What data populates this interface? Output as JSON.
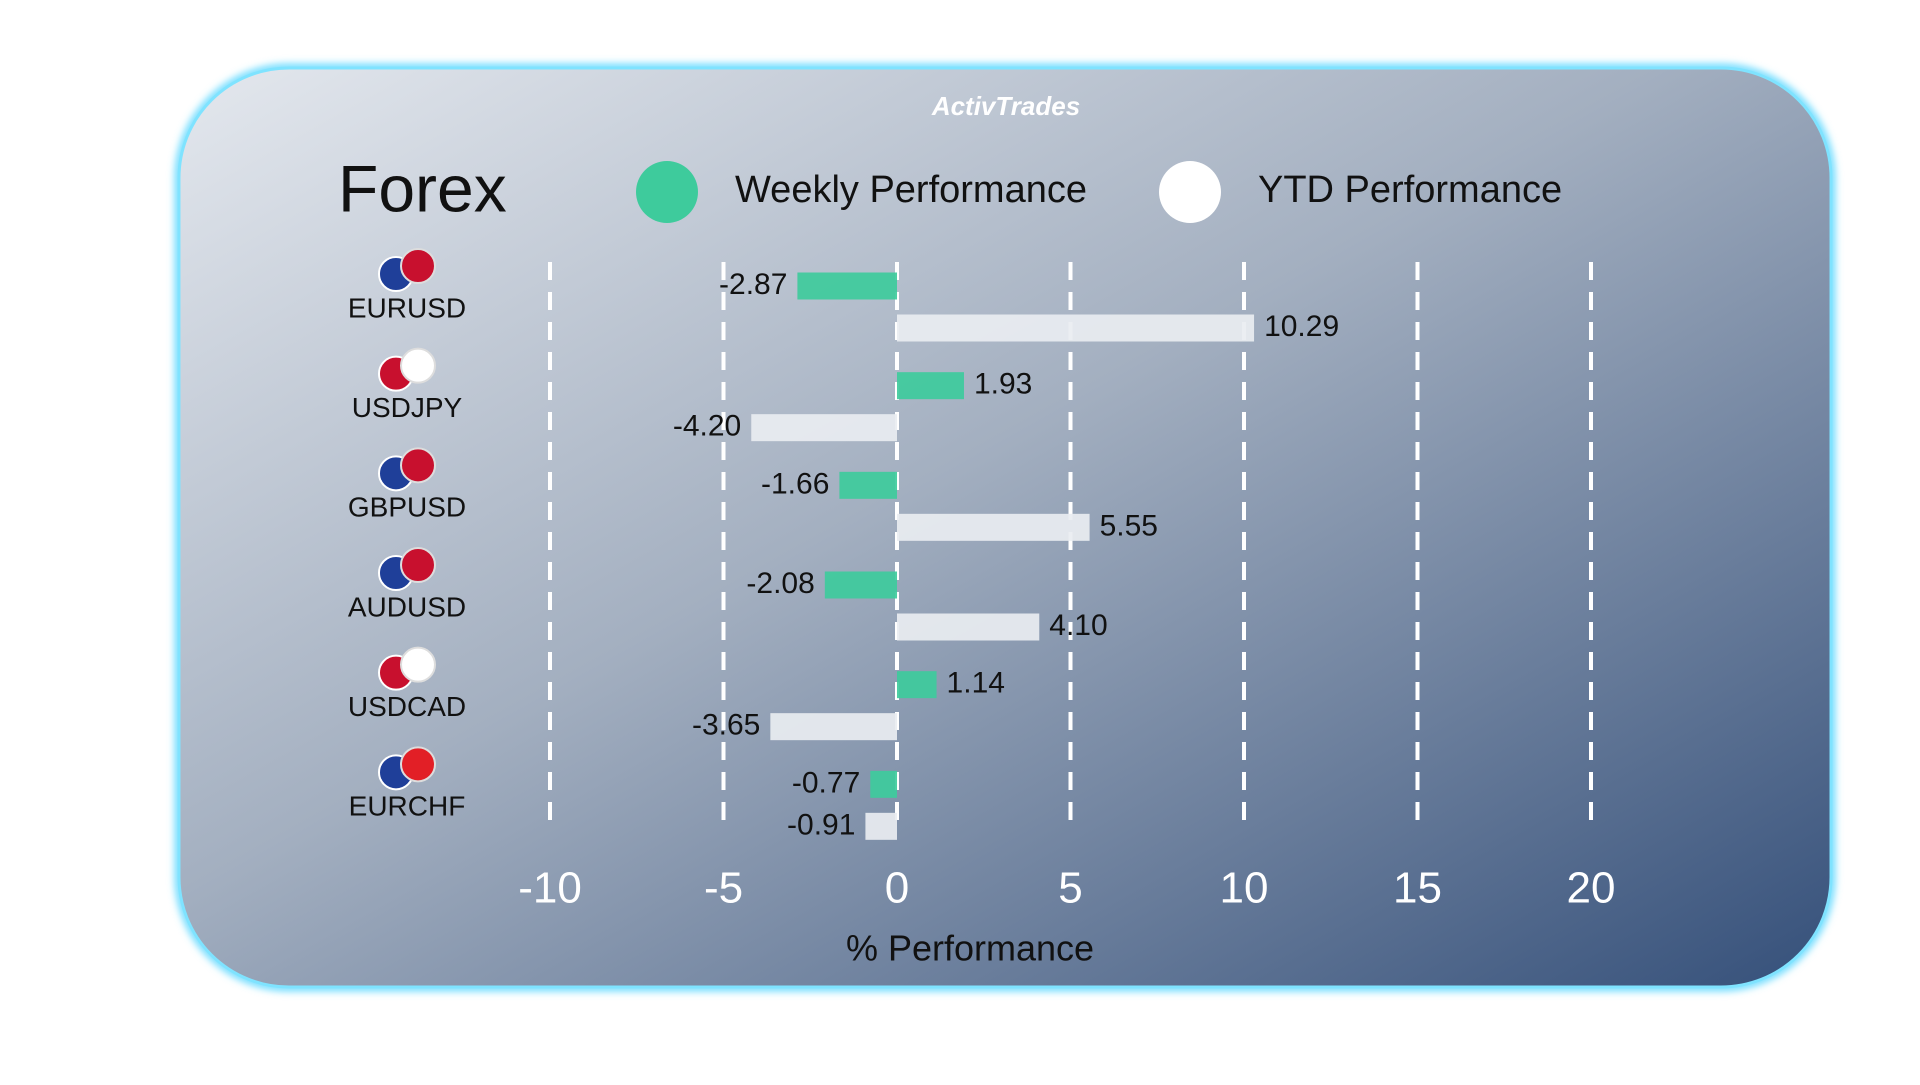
{
  "brand": "ActivTrades",
  "chart_data": {
    "type": "hbar",
    "title": "Forex",
    "xlabel": "% Performance",
    "categories": [
      "EURUSD",
      "USDJPY",
      "GBPUSD",
      "AUDUSD",
      "USDCAD",
      "EURCHF"
    ],
    "series": [
      {
        "name": "Weekly Performance",
        "color": "#3ecb9c",
        "values": [
          -2.87,
          1.93,
          -1.66,
          -2.08,
          1.14,
          -0.77
        ]
      },
      {
        "name": "YTD Performance",
        "color": "#e9edf1",
        "values": [
          10.29,
          -4.2,
          5.55,
          4.1,
          -3.65,
          -0.91
        ],
        "value_labels": [
          "10.29",
          "-4.20",
          "5.55",
          "4.10",
          "-3.65",
          "-0.91"
        ]
      }
    ],
    "xlim": [
      -10,
      20
    ],
    "xticks": [
      -10,
      -5,
      0,
      5,
      10,
      15,
      20
    ],
    "grid": true
  }
}
